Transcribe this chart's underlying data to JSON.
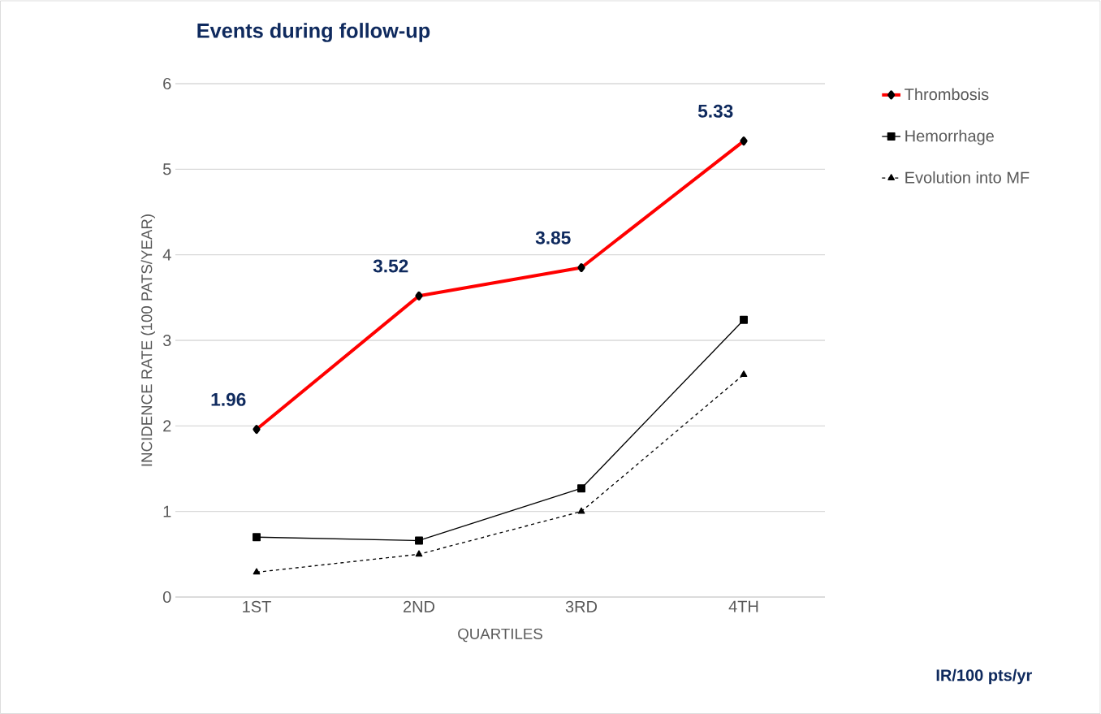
{
  "chart_data": {
    "type": "line",
    "title": "Events during follow-up",
    "xlabel": "QUARTILES",
    "ylabel": "INCIDENCE RATE (100 PATS/YEAR)",
    "annotations": [
      "IR/100 pts/yr"
    ],
    "categories": [
      "1ST",
      "2ND",
      "3RD",
      "4TH"
    ],
    "ylim": [
      0,
      6
    ],
    "yticks": [
      0,
      1,
      2,
      3,
      4,
      5,
      6
    ],
    "grid": "y",
    "legend": "top right",
    "series": [
      {
        "name": "Thrombosis",
        "color": "#ff0000",
        "marker": "diamond",
        "line_style": "solid",
        "values": [
          1.96,
          3.52,
          3.85,
          5.33
        ],
        "value_labels": [
          "1.96",
          "3.52",
          "3.85",
          "5.33"
        ]
      },
      {
        "name": "Hemorrhage",
        "color": "#000000",
        "marker": "square",
        "line_style": "solid",
        "values": [
          0.7,
          0.66,
          1.27,
          3.24
        ]
      },
      {
        "name": "Evolution into MF",
        "color": "#000000",
        "marker": "triangle",
        "line_style": "dashed",
        "values": [
          0.29,
          0.5,
          1.0,
          2.6
        ]
      }
    ]
  }
}
